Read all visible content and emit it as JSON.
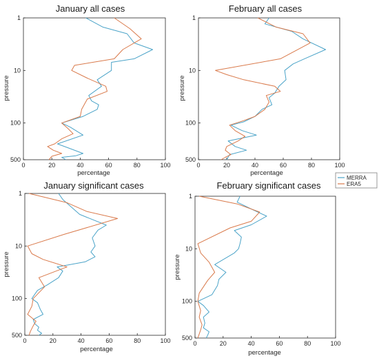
{
  "legend": [
    {
      "name": "MERRA",
      "color": "#4aa3c8"
    },
    {
      "name": "ERA5",
      "color": "#d9794a"
    }
  ],
  "chart_data": [
    {
      "type": "line",
      "title": "January all cases",
      "xlabel": "percentage",
      "ylabel": "pressure",
      "xlim": [
        0,
        100
      ],
      "ylim": [
        1,
        500
      ],
      "yscale": "log",
      "yreversed": true,
      "xticks": [
        0,
        20,
        40,
        60,
        80,
        100
      ],
      "yticks": [
        1,
        10,
        100,
        500
      ],
      "grid": false,
      "series": [
        {
          "name": "MERRA",
          "color": "#4aa3c8",
          "x": [
            44,
            56,
            73,
            78,
            91,
            78,
            62,
            62,
            52,
            55,
            46,
            48,
            53,
            52,
            42,
            27,
            33,
            42,
            24,
            32,
            42,
            37,
            27,
            30
          ],
          "y": [
            1,
            1.5,
            2,
            3,
            4,
            6,
            7,
            10,
            15,
            20,
            30,
            38,
            45,
            55,
            75,
            100,
            120,
            170,
            250,
            300,
            380,
            420,
            450,
            500
          ]
        },
        {
          "name": "ERA5",
          "color": "#d9794a",
          "x": [
            64,
            75,
            83,
            70,
            64,
            36,
            34,
            45,
            58,
            59,
            45,
            41,
            40,
            27,
            31,
            35,
            27,
            22,
            17,
            21,
            27,
            20,
            18
          ],
          "y": [
            1,
            1.6,
            2.5,
            4,
            6,
            8,
            10,
            14,
            20,
            25,
            35,
            55,
            75,
            100,
            125,
            160,
            200,
            250,
            280,
            330,
            380,
            430,
            500
          ]
        }
      ]
    },
    {
      "type": "line",
      "title": "February all cases",
      "xlabel": "percentage",
      "ylabel": "pressure",
      "xlim": [
        0,
        100
      ],
      "ylim": [
        1,
        500
      ],
      "yscale": "log",
      "yreversed": true,
      "xticks": [
        0,
        20,
        40,
        60,
        80,
        100
      ],
      "yticks": [
        1,
        10,
        100,
        500
      ],
      "grid": false,
      "series": [
        {
          "name": "MERRA",
          "color": "#4aa3c8",
          "x": [
            50,
            47,
            66,
            74,
            90,
            75,
            67,
            61,
            62,
            57,
            54,
            50,
            52,
            45,
            40,
            32,
            23,
            31,
            41,
            21,
            26,
            34,
            22,
            20
          ],
          "y": [
            1,
            1.3,
            1.8,
            2.5,
            4,
            6,
            7.5,
            10,
            15,
            20,
            27,
            33,
            45,
            55,
            75,
            95,
            110,
            140,
            170,
            220,
            280,
            330,
            400,
            500
          ]
        },
        {
          "name": "ERA5",
          "color": "#d9794a",
          "x": [
            42,
            55,
            74,
            79,
            58,
            12,
            20,
            32,
            54,
            58,
            48,
            50,
            47,
            40,
            32,
            22,
            26,
            33,
            28,
            20,
            19,
            23,
            19,
            16
          ],
          "y": [
            1,
            1.5,
            2,
            3,
            6,
            10,
            12,
            15,
            20,
            25,
            30,
            40,
            55,
            75,
            90,
            110,
            140,
            180,
            220,
            280,
            330,
            400,
            450,
            500
          ]
        }
      ]
    },
    {
      "type": "line",
      "title": "January significant cases",
      "xlabel": "percentage",
      "ylabel": "pressure",
      "xlim": [
        0,
        100
      ],
      "ylim": [
        1,
        500
      ],
      "yscale": "log",
      "yreversed": true,
      "xticks": [
        0,
        20,
        40,
        60,
        80,
        100
      ],
      "yticks": [
        1,
        10,
        100,
        500
      ],
      "grid": false,
      "series": [
        {
          "name": "MERRA",
          "color": "#4aa3c8",
          "x": [
            24,
            27,
            39,
            58,
            52,
            48,
            50,
            47,
            50,
            43,
            23,
            27,
            24,
            16,
            9,
            5,
            9,
            11,
            13,
            6,
            7,
            10,
            9,
            12,
            10
          ],
          "y": [
            1,
            1.3,
            2.5,
            4,
            5,
            7,
            10,
            13,
            16,
            20,
            25,
            30,
            40,
            55,
            70,
            100,
            120,
            160,
            200,
            250,
            300,
            350,
            400,
            460,
            500
          ]
        },
        {
          "name": "ERA5",
          "color": "#d9794a",
          "x": [
            3,
            30,
            44,
            66,
            28,
            2,
            5,
            13,
            30,
            10,
            14,
            6,
            5,
            2,
            8,
            6,
            4,
            3
          ],
          "y": [
            1,
            1.5,
            2.2,
            3,
            6,
            10,
            14,
            18,
            25,
            40,
            60,
            100,
            140,
            200,
            270,
            330,
            420,
            500
          ]
        }
      ]
    },
    {
      "type": "line",
      "title": "February significant cases",
      "xlabel": "percentage",
      "ylabel": "pressure",
      "xlim": [
        0,
        100
      ],
      "ylim": [
        1,
        500
      ],
      "yscale": "log",
      "yreversed": true,
      "xticks": [
        0,
        20,
        40,
        60,
        80,
        100
      ],
      "yticks": [
        1,
        10,
        100,
        500
      ],
      "grid": false,
      "series": [
        {
          "name": "MERRA",
          "color": "#4aa3c8",
          "x": [
            32,
            30,
            41,
            51,
            40,
            28,
            33,
            32,
            31,
            28,
            14,
            22,
            17,
            16,
            12,
            2,
            6,
            10,
            6,
            7,
            6,
            10,
            9,
            8
          ],
          "y": [
            1,
            1.3,
            1.8,
            2.4,
            3.5,
            4.5,
            6,
            8,
            10,
            12,
            20,
            28,
            38,
            50,
            75,
            100,
            120,
            160,
            200,
            260,
            320,
            380,
            440,
            500
          ]
        },
        {
          "name": "ERA5",
          "color": "#d9794a",
          "x": [
            3,
            30,
            46,
            40,
            25,
            2,
            4,
            10,
            14,
            9,
            3,
            2,
            4,
            3,
            5,
            4,
            3,
            2
          ],
          "y": [
            1,
            1.4,
            2,
            3,
            4,
            8,
            12,
            18,
            28,
            40,
            70,
            100,
            150,
            200,
            280,
            350,
            420,
            500
          ]
        }
      ]
    }
  ]
}
